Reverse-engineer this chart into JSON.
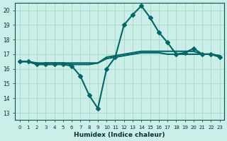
{
  "xlabel": "Humidex (Indice chaleur)",
  "ylabel": "",
  "background_color": "#cceee8",
  "grid_color": "#aaddcc",
  "line_color": "#006666",
  "xlim": [
    -0.5,
    23.5
  ],
  "ylim": [
    12.5,
    20.5
  ],
  "yticks": [
    13,
    14,
    15,
    16,
    17,
    18,
    19,
    20
  ],
  "xticks": [
    0,
    1,
    2,
    3,
    4,
    5,
    6,
    7,
    8,
    9,
    10,
    11,
    12,
    13,
    14,
    15,
    16,
    17,
    18,
    19,
    20,
    21,
    22,
    23
  ],
  "series": [
    {
      "x": [
        0,
        1,
        2,
        3,
        4,
        5,
        6,
        7,
        8,
        9,
        10,
        11,
        12,
        13,
        14,
        15,
        16,
        17,
        18,
        19,
        20,
        21,
        22,
        23
      ],
      "y": [
        16.5,
        16.5,
        16.3,
        16.3,
        16.3,
        16.3,
        16.2,
        15.5,
        14.2,
        13.3,
        16.0,
        16.8,
        19.0,
        19.7,
        20.3,
        19.5,
        18.5,
        17.8,
        17.0,
        17.1,
        17.4,
        17.0,
        17.0,
        16.8
      ],
      "marker": "D",
      "markersize": 3,
      "linewidth": 1.5,
      "with_markers": true
    },
    {
      "x": [
        0,
        1,
        2,
        3,
        4,
        5,
        6,
        7,
        8,
        9,
        10,
        11,
        12,
        13,
        14,
        15,
        16,
        17,
        18,
        19,
        20,
        21,
        22,
        23
      ],
      "y": [
        16.5,
        16.5,
        16.4,
        16.4,
        16.4,
        16.4,
        16.4,
        16.4,
        16.4,
        16.4,
        16.7,
        16.8,
        16.9,
        17.0,
        17.1,
        17.1,
        17.1,
        17.0,
        17.0,
        17.0,
        17.0,
        17.0,
        17.0,
        16.9
      ],
      "marker": null,
      "markersize": 0,
      "linewidth": 1.5,
      "with_markers": false
    },
    {
      "x": [
        0,
        1,
        2,
        3,
        4,
        5,
        6,
        7,
        8,
        9,
        10,
        11,
        12,
        13,
        14,
        15,
        16,
        17,
        18,
        19,
        20,
        21,
        22,
        23
      ],
      "y": [
        16.5,
        16.5,
        16.3,
        16.4,
        16.4,
        16.4,
        16.3,
        16.3,
        16.3,
        16.4,
        16.8,
        16.9,
        17.0,
        17.1,
        17.2,
        17.2,
        17.2,
        17.2,
        17.2,
        17.2,
        17.2,
        17.0,
        17.0,
        16.9
      ],
      "marker": null,
      "markersize": 0,
      "linewidth": 1.5,
      "with_markers": false
    }
  ]
}
